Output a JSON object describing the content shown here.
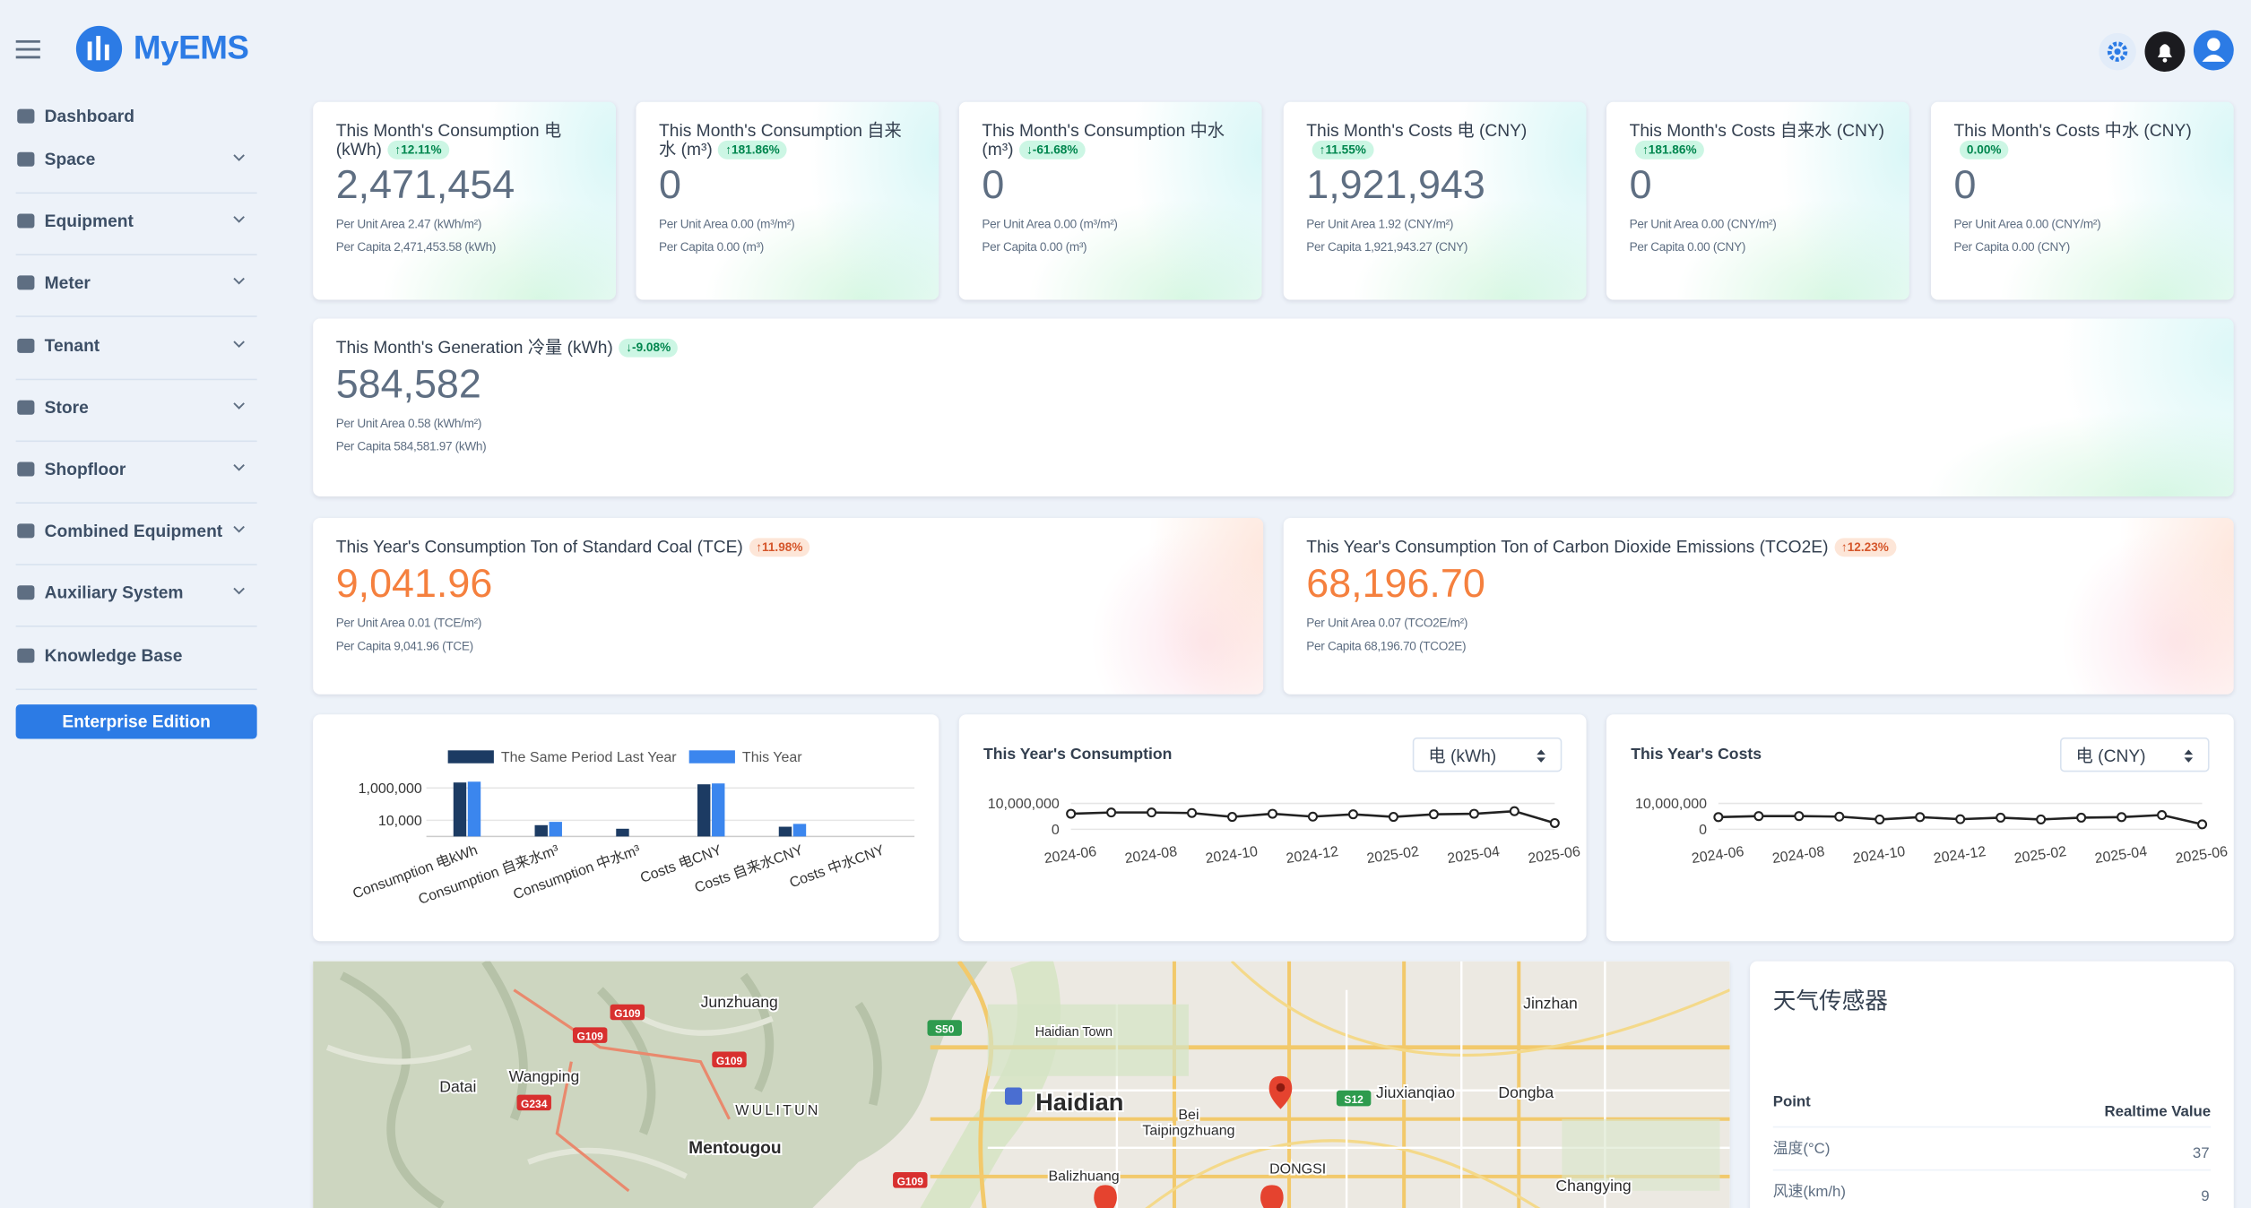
{
  "header": {
    "brand": "MyEMS"
  },
  "sidebar": {
    "items": [
      "Dashboard",
      "Space",
      "Equipment",
      "Meter",
      "Tenant",
      "Store",
      "Shopfloor",
      "Combined Equipment",
      "Auxiliary System",
      "Knowledge Base"
    ],
    "button": "Enterprise Edition"
  },
  "cards": [
    {
      "title": "This Month's Consumption 电 (kWh)",
      "badge": "↑12.11%",
      "value": "2,471,454",
      "per_unit_area": "Per Unit Area 2.47 (kWh/m²)",
      "per_capita": "Per Capita 2,471,453.58 (kWh)"
    },
    {
      "title": "This Month's Consumption 自来水 (m³)",
      "badge": "↑181.86%",
      "value": "0",
      "per_unit_area": "Per Unit Area 0.00 (m³/m²)",
      "per_capita": "Per Capita 0.00 (m³)"
    },
    {
      "title": "This Month's Consumption 中水 (m³)",
      "badge": "↓-61.68%",
      "value": "0",
      "per_unit_area": "Per Unit Area 0.00 (m³/m²)",
      "per_capita": "Per Capita 0.00 (m³)"
    },
    {
      "title": "This Month's Costs 电 (CNY)",
      "badge": "↑11.55%",
      "value": "1,921,943",
      "per_unit_area": "Per Unit Area 1.92 (CNY/m²)",
      "per_capita": "Per Capita 1,921,943.27 (CNY)"
    },
    {
      "title": "This Month's Costs 自来水 (CNY)",
      "badge": "↑181.86%",
      "value": "0",
      "per_unit_area": "Per Unit Area 0.00 (CNY/m²)",
      "per_capita": "Per Capita 0.00 (CNY)"
    },
    {
      "title": "This Month's Costs 中水 (CNY)",
      "badge": "0.00%",
      "value": "0",
      "per_unit_area": "Per Unit Area 0.00 (CNY/m²)",
      "per_capita": "Per Capita 0.00 (CNY)"
    }
  ],
  "generation": {
    "title": "This Month's Generation 冷量 (kWh)",
    "badge": "↓-9.08%",
    "value": "584,582",
    "per_unit_area": "Per Unit Area 0.58 (kWh/m²)",
    "per_capita": "Per Capita 584,581.97 (kWh)"
  },
  "year_cards": [
    {
      "title": "This Year's Consumption Ton of Standard Coal (TCE)",
      "badge": "↑11.98%",
      "value": "9,041.96",
      "per_unit_area": "Per Unit Area 0.01 (TCE/m²)",
      "per_capita": "Per Capita 9,041.96 (TCE)"
    },
    {
      "title": "This Year's Consumption Ton of Carbon Dioxide Emissions (TCO2E)",
      "badge": "↑12.23%",
      "value": "68,196.70",
      "per_unit_area": "Per Unit Area 0.07 (TCO2E/m²)",
      "per_capita": "Per Capita 68,196.70 (TCO2E)"
    }
  ],
  "bar_chart": {
    "type": "bar",
    "log_scale": true,
    "categories": [
      "Consumption 电kWh",
      "Consumption 自来水m³",
      "Consumption 中水m³",
      "Costs 电CNY",
      "Costs 自来水CNY",
      "Costs 中水CNY"
    ],
    "series": [
      {
        "name": "The Same Period Last Year",
        "color": "#1c3b63",
        "values": [
          2200000,
          5000,
          3000,
          1700000,
          4000,
          null
        ]
      },
      {
        "name": "This Year",
        "color": "#3b86ee",
        "values": [
          2471454,
          8000,
          null,
          1921943,
          6000,
          null
        ]
      }
    ],
    "ylim": [
      1000,
      10000000
    ],
    "yticks": [
      {
        "value": 10000,
        "label": "10,000"
      },
      {
        "value": 1000000,
        "label": "1,000,000"
      }
    ],
    "grid": true
  },
  "consumption_chart": {
    "type": "line",
    "title": "This Year's Consumption",
    "unit_select": "电 (kWh)",
    "categories": [
      "2024-06",
      null,
      "2024-08",
      null,
      "2024-10",
      null,
      "2024-12",
      null,
      "2025-02",
      null,
      "2025-04",
      null,
      "2025-06"
    ],
    "values": [
      6000000,
      6500000,
      6500000,
      6300000,
      4800000,
      6000000,
      4900000,
      5800000,
      4800000,
      5800000,
      6000000,
      7000000,
      2400000
    ],
    "ylim": [
      0,
      10000000
    ],
    "yticks": [
      0,
      {
        "value": 10000000,
        "label": "10,000,000"
      }
    ],
    "color": "#222222",
    "grid": true
  },
  "costs_chart": {
    "type": "line",
    "title": "This Year's Costs",
    "unit_select": "电 (CNY)",
    "categories": [
      "2024-06",
      null,
      "2024-08",
      null,
      "2024-10",
      null,
      "2024-12",
      null,
      "2025-02",
      null,
      "2025-04",
      null,
      "2025-06"
    ],
    "values": [
      4700000,
      5100000,
      5100000,
      4900000,
      3800000,
      4700000,
      3900000,
      4500000,
      3800000,
      4500000,
      4700000,
      5500000,
      1900000
    ],
    "ylim": [
      0,
      10000000
    ],
    "yticks": [
      0,
      {
        "value": 10000000,
        "label": "10,000,000"
      }
    ],
    "color": "#222222",
    "grid": true
  },
  "map": {
    "labels": [
      "Junzhuang",
      "Haidian Town",
      "Haidian",
      "Jinzhan",
      "Datai",
      "Wangping",
      "WULITUN",
      "Mentougou",
      "Bei",
      "Taipingzhuang",
      "Jiuxianqiao",
      "Dongba",
      "DONGSI",
      "Balizhuang",
      "Changying"
    ],
    "shields": [
      "G109",
      "G109",
      "G109",
      "G234",
      "S50",
      "S12",
      "G109"
    ]
  },
  "weather": {
    "title": "天气传感器",
    "columns": [
      "Point",
      "Realtime Value"
    ],
    "rows": [
      [
        "温度(°C)",
        "37"
      ],
      [
        "风速(km/h)",
        "9"
      ]
    ]
  }
}
